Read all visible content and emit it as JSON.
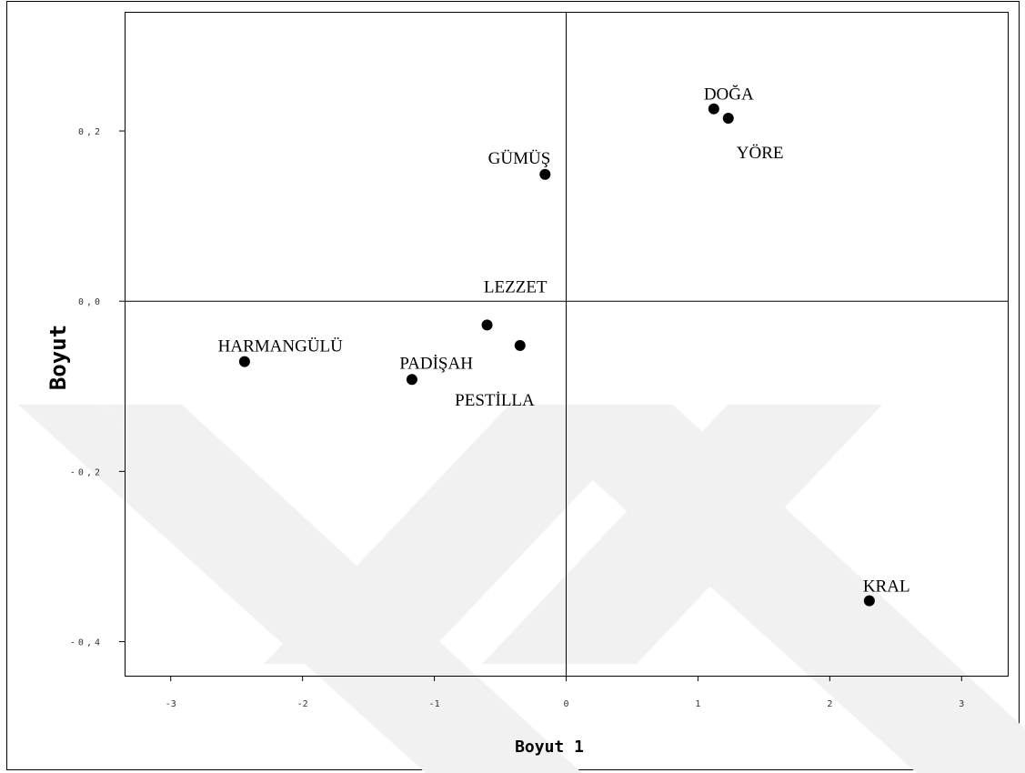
{
  "chart_data": {
    "type": "scatter",
    "title": "",
    "xlabel": "Boyut 1",
    "ylabel": "Boyut",
    "xlim": [
      -3.35,
      3.35
    ],
    "ylim": [
      -0.44,
      0.34
    ],
    "xticks": [
      -3,
      -2,
      -1,
      0,
      1,
      2,
      3
    ],
    "xtick_labels": [
      "-3",
      "-2",
      "-1",
      "0",
      "1",
      "2",
      "3"
    ],
    "yticks": [
      0.2,
      0.0,
      -0.2,
      -0.4
    ],
    "ytick_labels": [
      "0,2",
      "0,0",
      "-0,2",
      "-0,4"
    ],
    "grid": false,
    "reference_lines": {
      "x": 0,
      "y": 0
    },
    "points": [
      {
        "label": "DOĞA",
        "x": 1.12,
        "y": 0.226
      },
      {
        "label": "YÖRE",
        "x": 1.23,
        "y": 0.215
      },
      {
        "label": "GÜMÜŞ",
        "x": -0.16,
        "y": 0.149
      },
      {
        "label": "LEZZET",
        "x": -0.6,
        "y": -0.028
      },
      {
        "label": "PESTİLLA",
        "x": -0.35,
        "y": -0.052
      },
      {
        "label": "PADİŞAH",
        "x": -1.17,
        "y": -0.092
      },
      {
        "label": "HARMANGÜLÜ",
        "x": -2.44,
        "y": -0.071
      },
      {
        "label": "KRAL",
        "x": 2.3,
        "y": -0.352
      }
    ],
    "colors": {
      "marker": "#000000",
      "axes": "#000000",
      "watermark": "#f1f1f1"
    }
  }
}
